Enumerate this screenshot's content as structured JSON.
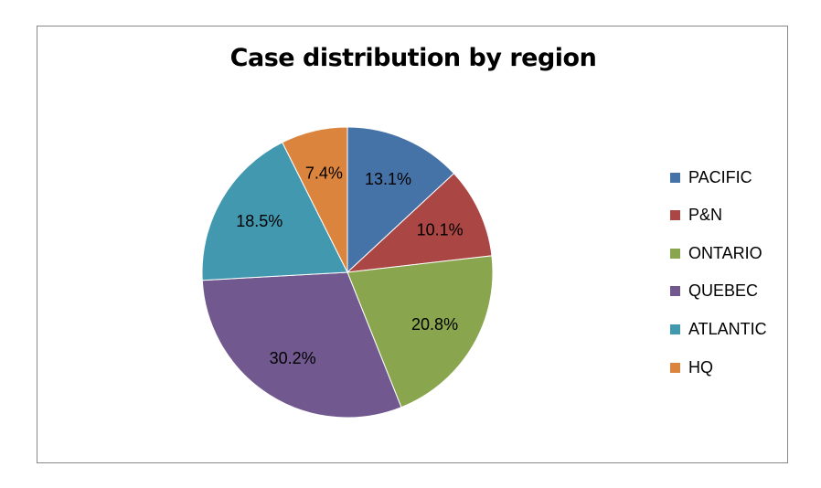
{
  "chart_data": {
    "type": "pie",
    "title": "Case distribution by region",
    "categories": [
      "PACIFIC",
      "P&N",
      "ONTARIO",
      "QUEBEC",
      "ATLANTIC",
      "HQ"
    ],
    "values": [
      13.1,
      10.1,
      20.8,
      30.2,
      18.5,
      7.4
    ],
    "labels": [
      "13.1%",
      "10.1%",
      "20.8%",
      "30.2%",
      "18.5%",
      "7.4%"
    ],
    "colors": [
      "#4572A7",
      "#AA4643",
      "#89A54E",
      "#71588F",
      "#4198AF",
      "#DB843D"
    ],
    "legend_position": "right",
    "start_angle": "top, clockwise"
  }
}
